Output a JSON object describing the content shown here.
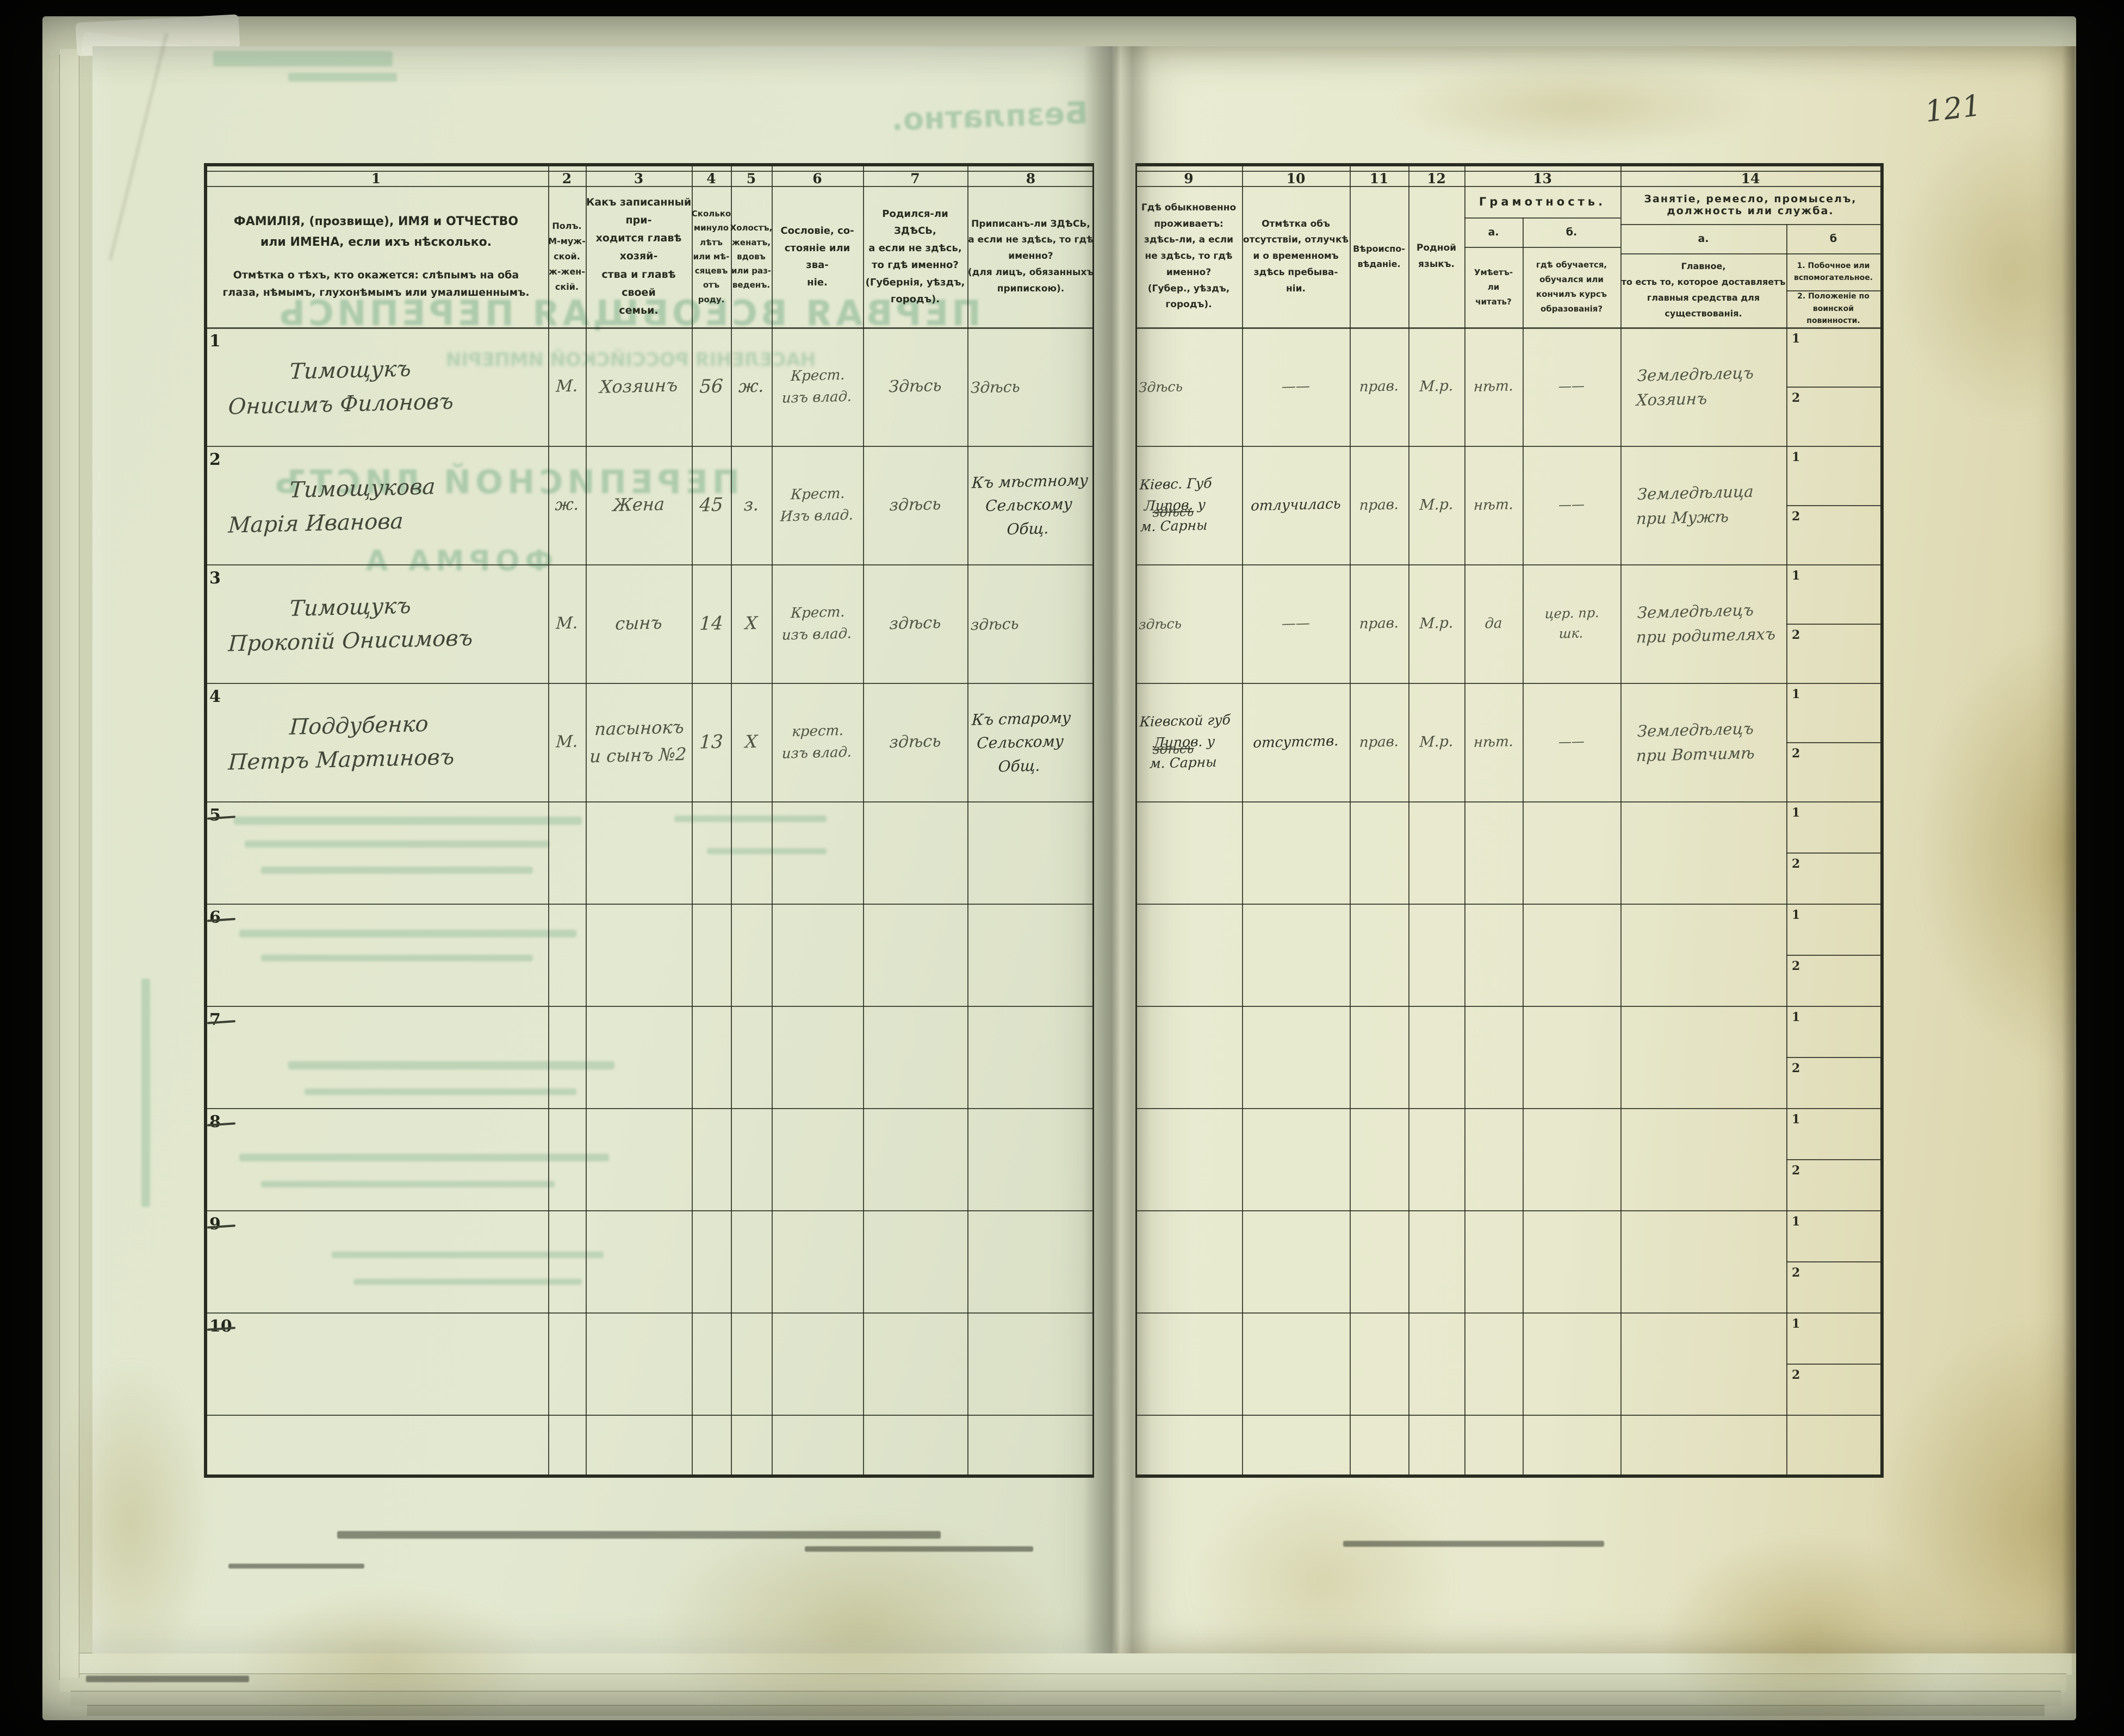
{
  "document": {
    "page_number_handwritten": "121",
    "bleedthrough": {
      "free_of_charge_stamp": "Безплатно.",
      "title_line": "ПЕРВАЯ ВСЕОБЩАЯ ПЕРЕПИСЬ",
      "subtitle_line": "НАСЕЛЕНІЯ РОССІЙСКОЙ ИМПЕРІИ",
      "sheet_title": "ПЕРЕПИСНОЙ ЛИСТЪ",
      "form_label": "ФОРМА А"
    }
  },
  "table": {
    "columns": [
      {
        "num": "1",
        "label": "ФАМИЛІЯ, (прозвище), ИМЯ и ОТЧЕСТВО или ИМЕНА, если ихъ нѣсколько.",
        "label2": "Отмѣтка о тѣхъ, кто окажется: слѣпымъ на оба глаза, нѣмымъ, глухонѣмымъ или умалишеннымъ."
      },
      {
        "num": "2",
        "label": "Полъ.\nМ-муж-\nской.\nж-жен-\nскій."
      },
      {
        "num": "3",
        "label": "Какъ записанный при-\nходится главѣ хозяй-\nства и главѣ своей\nсемьи."
      },
      {
        "num": "4",
        "label": "Сколько\nминуло\nлѣтъ\nили мѣ-\nсяцевъ\nотъ роду."
      },
      {
        "num": "5",
        "label": "Холостъ,\nженатъ,\nвдовъ\nили раз-\nведенъ."
      },
      {
        "num": "6",
        "label": "Сословіе, со-\nстояніе или зва-\nніе."
      },
      {
        "num": "7",
        "label": "Родился-ли ЗДѢСЬ,\nа если не здѣсь,\nто гдѣ именно?\n(Губернія, уѣздъ, городъ)."
      },
      {
        "num": "8",
        "label": "Приписанъ-ли ЗДѢСЬ,\nа если не здѣсь, то гдѣ\nименно?\n(для лицъ, обязанныхъ\nприпискою)."
      },
      {
        "num": "9",
        "label": "Гдѣ обыкновенно\nпроживаетъ:\nздѣсь-ли, а если\nне здѣсь, то гдѣ\nименно?\n(Губер., уѣздъ, городъ)."
      },
      {
        "num": "10",
        "label": "Отмѣтка объ\nотсутствіи, отлучкѣ\nи о временномъ\nздѣсь пребыва-\nніи."
      },
      {
        "num": "11",
        "label": "Вѣроиспо-\nвѣданіе."
      },
      {
        "num": "12",
        "label": "Родной\nязыкъ."
      },
      {
        "num": "13",
        "label": "Грамотность.",
        "sub_a": "а.",
        "sub_b": "б.",
        "a_label": "Умѣетъ-\nли\nчитать?",
        "b_label": "гдѣ обучается,\nобучался или\nкончилъ курсъ\nобразованія?"
      },
      {
        "num": "14",
        "label": "Занятіе, ремесло, промыселъ, должность или служба.",
        "sub_a": "а.",
        "sub_b": "б",
        "a_label": "Главное,\nто есть то, которое доставляетъ\nглавныя средства для существованія.",
        "b1_label": "1.  Побочное или  вспомогательное.",
        "b2_label": "2.  Положеніе по воинской повинности."
      }
    ],
    "sub_row_labels": [
      "1",
      "2"
    ],
    "rows": [
      {
        "num": "1",
        "name": "Тимощукъ\nОнисимъ Филоновъ",
        "sex": "М.",
        "relation": "Хозяинъ",
        "age": "56",
        "marital": "ж.",
        "estate": "Крест.\nизъ влад.",
        "born": "Здѣсь",
        "registered": "Здѣсь",
        "resides": "Здѣсь",
        "absence": "——",
        "faith": "прав.",
        "language": "М.р.",
        "literacy_a": "нѣт.",
        "literacy_b": "——",
        "occupation": "Земледѣлецъ\nХозяинъ"
      },
      {
        "num": "2",
        "name": "Тимощукова\nМарія Иванова",
        "sex": "ж.",
        "relation": "Жена",
        "age": "45",
        "marital": "з.",
        "estate": "Крест.\nИзъ влад.",
        "born": "здѣсь",
        "registered": "Къ мѣстному\nСельскому\nОбщ.",
        "resides": "Кіевс. Губ\nЛипов. у\nм. Сарны",
        "resides_struck": "здѣсь",
        "absence": "отлучилась",
        "faith": "прав.",
        "language": "М.р.",
        "literacy_a": "нѣт.",
        "literacy_b": "——",
        "occupation": "Земледѣлица\nпри Мужѣ"
      },
      {
        "num": "3",
        "name": "Тимощукъ\nПрокопій Онисимовъ",
        "sex": "М.",
        "relation": "сынъ",
        "age": "14",
        "marital": "Х",
        "estate": "Крест.\nизъ влад.",
        "born": "здѣсь",
        "registered": "здѣсь",
        "resides": "здѣсь",
        "absence": "——",
        "faith": "прав.",
        "language": "М.р.",
        "literacy_a": "да",
        "literacy_b": "цер. пр.\nшк.",
        "occupation": "Земледѣлецъ\nпри родителяхъ"
      },
      {
        "num": "4",
        "name": "Поддубенко\nПетръ Мартиновъ",
        "sex": "М.",
        "relation": "пасынокъ\nи сынъ №2",
        "age": "13",
        "marital": "Х",
        "estate": "крест.\nизъ влад.",
        "born": "здѣсь",
        "registered": "Къ старому\nСельскому\nОбщ.",
        "resides": "Кіевской губ\nЛипов. у\nм. Сарны",
        "resides_struck": "здѣсь",
        "absence": "отсутств.",
        "faith": "прав.",
        "language": "М.р.",
        "literacy_a": "нѣт.",
        "literacy_b": "——",
        "occupation": "Земледѣлецъ\nпри Вотчимѣ"
      },
      {
        "num": "5",
        "cancelled": true
      },
      {
        "num": "6",
        "cancelled": true
      },
      {
        "num": "7",
        "cancelled": true
      },
      {
        "num": "8",
        "cancelled": true
      },
      {
        "num": "9",
        "cancelled": true
      },
      {
        "num": "10",
        "cancelled": true
      }
    ]
  }
}
